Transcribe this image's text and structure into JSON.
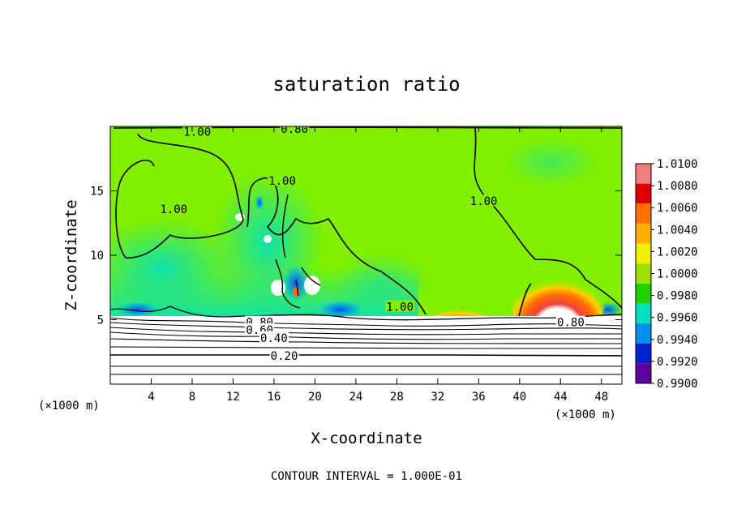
{
  "chart_data": {
    "type": "heatmap",
    "title": "saturation ratio",
    "xlabel": "X-coordinate",
    "ylabel": "Z-coordinate",
    "x_unit_left": "(×1000 m)",
    "x_unit_right": "(×1000 m)",
    "xlim": [
      0,
      50
    ],
    "ylim": [
      0,
      20
    ],
    "xticks": [
      4,
      8,
      12,
      16,
      20,
      24,
      28,
      32,
      36,
      40,
      44,
      48
    ],
    "yticks": [
      5,
      10,
      15
    ],
    "footer": "CONTOUR INTERVAL = 1.000E-01",
    "colorbar": {
      "levels": [
        "1.0100",
        "1.0080",
        "1.0060",
        "1.0040",
        "1.0020",
        "1.0000",
        "0.9980",
        "0.9960",
        "0.9940",
        "0.9920",
        "0.9900"
      ],
      "colors": [
        "#f08080",
        "#e00000",
        "#ff7000",
        "#ffb000",
        "#f0f000",
        "#a0e000",
        "#20d000",
        "#00e0c0",
        "#0090f0",
        "#0020d0",
        "#6000a0"
      ]
    },
    "field": {
      "saturated_region_color": "#80f000",
      "subsaturated_low_color": "#ffffff",
      "moist_layer_top_km": 5.3
    },
    "contours": [
      {
        "label": "1.00",
        "value": 1.0
      },
      {
        "label": "0.80",
        "value": 0.8
      },
      {
        "label": "0.60",
        "value": 0.6
      },
      {
        "label": "0.40",
        "value": 0.4
      },
      {
        "label": "0.20",
        "value": 0.2
      }
    ],
    "contour_labels": [
      {
        "text": "1.00",
        "x": 8.5,
        "y": 19.6
      },
      {
        "text": "0.80",
        "x": 18.0,
        "y": 19.8
      },
      {
        "text": "1.00",
        "x": 6.2,
        "y": 13.6
      },
      {
        "text": "1.00",
        "x": 16.8,
        "y": 15.8
      },
      {
        "text": "1.00",
        "x": 36.5,
        "y": 14.2
      },
      {
        "text": "1.00",
        "x": 28.3,
        "y": 6.0
      },
      {
        "text": "0.80",
        "x": 14.6,
        "y": 4.8
      },
      {
        "text": "0.60",
        "x": 14.6,
        "y": 4.2
      },
      {
        "text": "0.40",
        "x": 16.0,
        "y": 3.6
      },
      {
        "text": "0.20",
        "x": 17.0,
        "y": 2.2
      },
      {
        "text": "0.80",
        "x": 45.0,
        "y": 4.8
      }
    ]
  }
}
